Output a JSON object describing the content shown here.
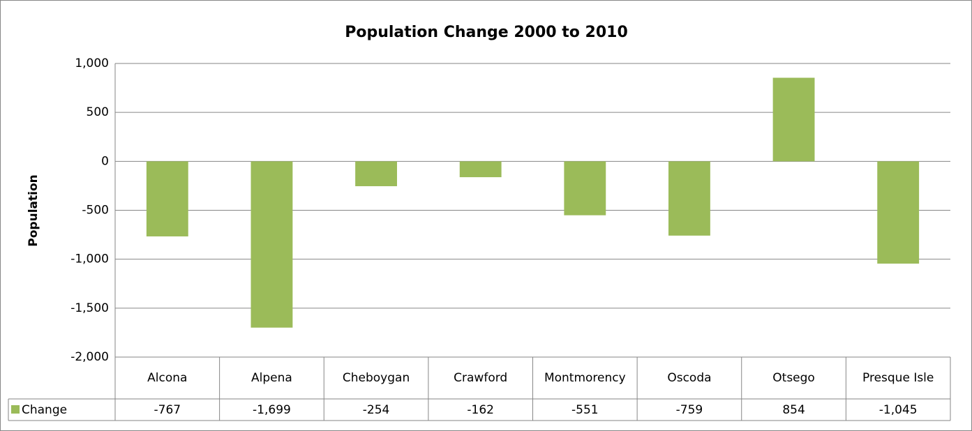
{
  "chart_data": {
    "type": "bar",
    "title": "Population Change 2000 to 2010",
    "y_label": "Population",
    "categories": [
      "Alcona",
      "Alpena",
      "Cheboygan",
      "Crawford",
      "Montmorency",
      "Oscoda",
      "Otsego",
      "Presque Isle"
    ],
    "series": [
      {
        "name": "Change",
        "color": "#9bbb59",
        "values": [
          -767,
          -1699,
          -254,
          -162,
          -551,
          -759,
          854,
          -1045
        ],
        "value_labels": [
          "-767",
          "-1,699",
          "-254",
          "-162",
          "-551",
          "-759",
          "854",
          "-1,045"
        ]
      }
    ],
    "ylim": [
      -2000,
      1000
    ],
    "yticks": [
      {
        "value": -2000,
        "label": "-2,000"
      },
      {
        "value": -1500,
        "label": "-1,500"
      },
      {
        "value": -1000,
        "label": "-1,000"
      },
      -500,
      0,
      500,
      {
        "value": 1000,
        "label": "1,000"
      }
    ],
    "grid": true,
    "data_table": true
  }
}
